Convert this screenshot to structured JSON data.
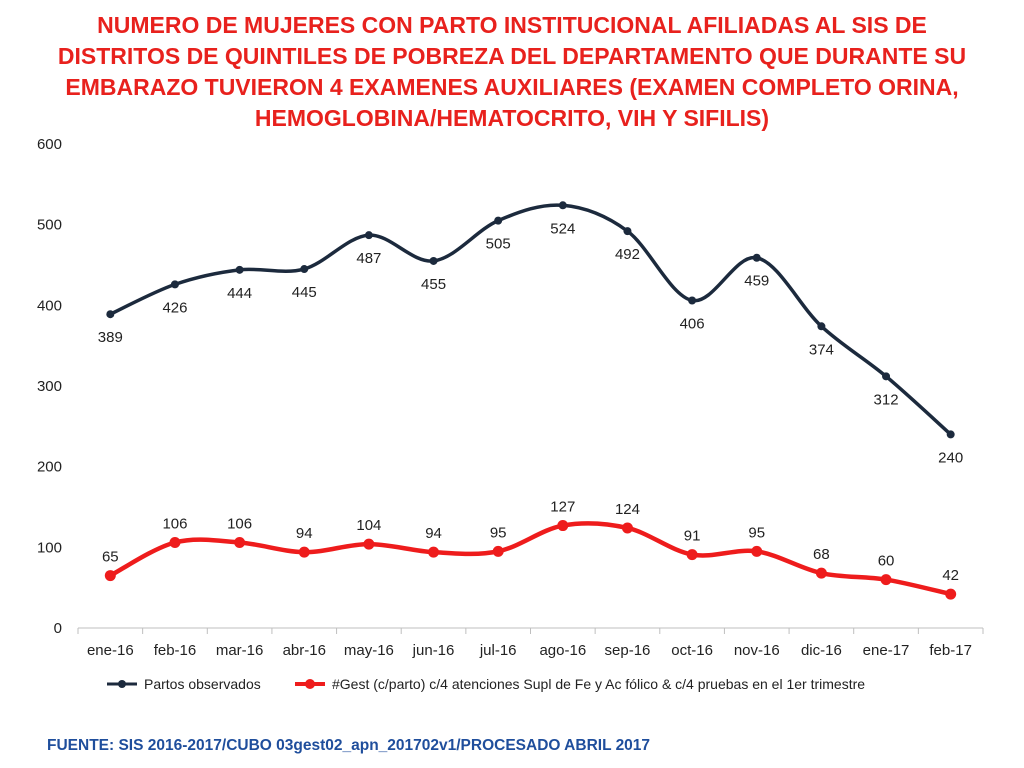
{
  "source_note": "FUENTE: SIS 2016-2017/CUBO 03gest02_apn_201702v1/PROCESADO ABRIL 2017",
  "chart_data": {
    "type": "line",
    "title": "NUMERO DE MUJERES CON PARTO INSTITUCIONAL AFILIADAS AL SIS DE DISTRITOS DE QUINTILES DE POBREZA DEL DEPARTAMENTO QUE DURANTE SU EMBARAZO TUVIERON  4 EXAMENES AUXILIARES (EXAMEN COMPLETO ORINA, HEMOGLOBINA/HEMATOCRITO, VIH Y SIFILIS)",
    "xlabel": "",
    "ylabel": "",
    "categories": [
      "ene-16",
      "feb-16",
      "mar-16",
      "abr-16",
      "may-16",
      "jun-16",
      "jul-16",
      "ago-16",
      "sep-16",
      "oct-16",
      "nov-16",
      "dic-16",
      "ene-17",
      "feb-17"
    ],
    "ylim": [
      0,
      600
    ],
    "yticks": [
      0,
      100,
      200,
      300,
      400,
      500,
      600
    ],
    "grid": false,
    "legend_position": "bottom",
    "series": [
      {
        "name": "Partos observados",
        "color": "#1c2a3d",
        "values": [
          389,
          426,
          444,
          445,
          487,
          455,
          505,
          524,
          492,
          406,
          459,
          374,
          312,
          240
        ],
        "label_pos": [
          "below",
          "below",
          "below",
          "below",
          "below",
          "below",
          "below",
          "below",
          "below",
          "below",
          "below",
          "below",
          "below",
          "below"
        ]
      },
      {
        "name": "#Gest (c/parto) c/4 atenciones Supl de Fe y Ac fólico & c/4 pruebas en el 1er trimestre",
        "color": "#ee1c1c",
        "values": [
          65,
          106,
          106,
          94,
          104,
          94,
          95,
          127,
          124,
          91,
          95,
          68,
          60,
          42
        ],
        "label_pos": [
          "above",
          "above",
          "above",
          "above",
          "above",
          "above",
          "above",
          "above",
          "above",
          "above",
          "above",
          "above",
          "above",
          "above"
        ]
      }
    ]
  }
}
